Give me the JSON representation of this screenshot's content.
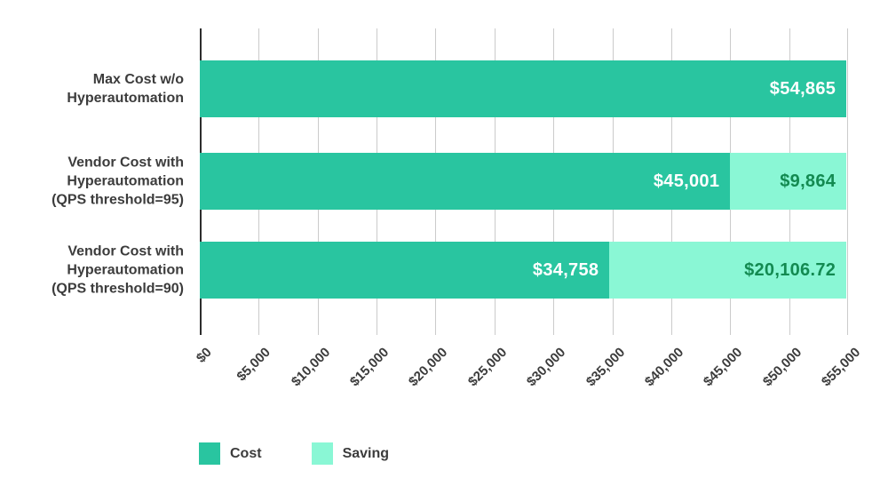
{
  "chart_data": {
    "type": "bar",
    "orientation": "horizontal",
    "stacked": true,
    "title": "",
    "xlabel": "",
    "ylabel": "",
    "xlim": [
      0,
      55000
    ],
    "x_tick_step": 5000,
    "x_ticks": [
      "$0",
      "$5,000",
      "$10,000",
      "$15,000",
      "$20,000",
      "$25,000",
      "$30,000",
      "$35,000",
      "$40,000",
      "$45,000",
      "$50,000",
      "$55,000"
    ],
    "grid": true,
    "legend_position": "bottom-left",
    "categories": [
      {
        "lines": [
          "Max Cost w/o",
          "Hyperautomation"
        ]
      },
      {
        "lines": [
          "Vendor Cost with",
          "Hyperautomation",
          "(QPS threshold=95)"
        ]
      },
      {
        "lines": [
          "Vendor Cost with",
          "Hyperautomation",
          "(QPS threshold=90)"
        ]
      }
    ],
    "series": [
      {
        "name": "Cost",
        "color": "#29c5a0",
        "label_color": "#ffffff",
        "values": [
          54865,
          45001,
          34758
        ],
        "labels": [
          "$54,865",
          "$45,001",
          "$34,758"
        ]
      },
      {
        "name": "Saving",
        "color": "#8af7d5",
        "label_color": "#138a51",
        "values": [
          0,
          9864,
          20106.72
        ],
        "labels": [
          "",
          "$9,864",
          "$20,106.72"
        ]
      }
    ],
    "legend": [
      {
        "label": "Cost",
        "color": "#29c5a0"
      },
      {
        "label": "Saving",
        "color": "#8af7d5"
      }
    ],
    "colors": {
      "axis_line": "#2d2d2d",
      "gridline": "#cbcbcb",
      "text": "#3c3c3c",
      "background": "#ffffff"
    }
  }
}
